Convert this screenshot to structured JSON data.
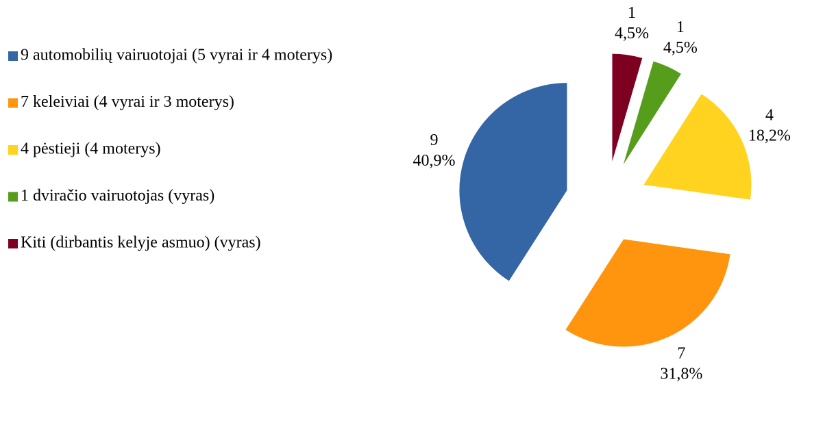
{
  "chart_data": {
    "type": "pie",
    "categories": [
      "9 automobilių vairuotojai (5 vyrai ir 4 moterys)",
      "7 keleiviai (4 vyrai ir 3 moterys)",
      "4 pėstieji (4 moterys)",
      "1 dviračio vairuotojas (vyras)",
      "Kiti (dirbantis kelyje asmuo) (vyras)"
    ],
    "values": [
      9,
      7,
      4,
      1,
      1
    ],
    "percentages": [
      40.9,
      31.8,
      18.2,
      4.5,
      4.5
    ],
    "percentage_labels": [
      "40,9%",
      "31,8%",
      "18,2%",
      "4,5%",
      "4,5%"
    ],
    "colors": [
      "#3465a4",
      "#ff950e",
      "#ffd320",
      "#579d1c",
      "#7e0021"
    ],
    "legend": "left"
  }
}
